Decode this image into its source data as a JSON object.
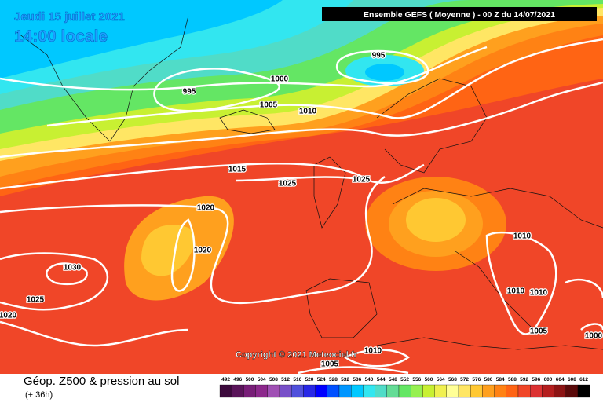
{
  "header": {
    "date": "Jeudi 15 juillet 2021",
    "time": "14:00 locale",
    "run": "Ensemble GEFS  ( Moyenne )  -  00 Z du 14/07/2021"
  },
  "isobar_labels": [
    "995",
    "1000",
    "995",
    "1005",
    "1010",
    "1015",
    "1025",
    "1025",
    "1020",
    "1020",
    "1010",
    "1030",
    "1025",
    "1020",
    "1010",
    "1010",
    "1005",
    "1000",
    "1010",
    "1005"
  ],
  "copyright": "Copyright © 2021 Meteociel.fr",
  "footer": {
    "title": "Géop. Z500 & pression au sol",
    "lead": "(+ 36h)"
  },
  "scale": {
    "labels": [
      492,
      496,
      500,
      504,
      508,
      512,
      516,
      520,
      524,
      528,
      532,
      536,
      540,
      544,
      548,
      552,
      556,
      560,
      564,
      568,
      572,
      576,
      580,
      584,
      588,
      592,
      596,
      600,
      604,
      608,
      612
    ],
    "colors": [
      "#3c0a3c",
      "#5a145a",
      "#781e78",
      "#8c288c",
      "#a050b4",
      "#7850c8",
      "#5050dc",
      "#2828e6",
      "#0000ff",
      "#0050ff",
      "#0096ff",
      "#00c8ff",
      "#32e6f0",
      "#50dcc8",
      "#64dc96",
      "#64e664",
      "#96f050",
      "#c8f032",
      "#f0f050",
      "#ffff96",
      "#ffe664",
      "#ffc832",
      "#ffa01e",
      "#ff8214",
      "#ff6414",
      "#f04628",
      "#dc3232",
      "#b41e1e",
      "#8c1414",
      "#5a0a0a",
      "#000000"
    ]
  }
}
